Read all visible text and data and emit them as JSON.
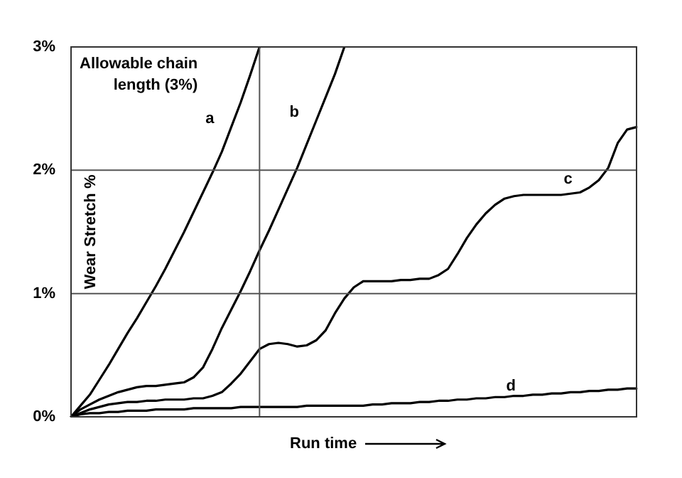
{
  "chart_data": {
    "type": "line",
    "xlabel": "Run time",
    "ylabel": "Wear Stretch %",
    "categories": [
      null,
      null,
      null,
      null,
      null,
      null,
      null,
      null,
      null,
      null,
      null,
      null,
      null,
      null,
      null,
      null,
      null,
      null,
      null,
      null,
      null,
      null,
      null,
      null,
      null,
      null,
      null,
      null,
      null,
      null,
      null,
      null,
      null,
      null,
      null,
      null,
      null,
      null,
      null,
      null,
      null,
      null,
      null,
      null,
      null,
      null,
      null,
      null,
      null,
      null,
      null,
      null,
      null,
      null,
      null,
      null,
      null,
      null,
      null,
      null,
      null
    ],
    "ylim": [
      0,
      3
    ],
    "yticks": [
      {
        "value": 0,
        "label": "0%"
      },
      {
        "value": 1,
        "label": "1%"
      },
      {
        "value": 2,
        "label": "2%"
      },
      {
        "value": 3,
        "label": "3%"
      }
    ],
    "tick_labels": "y",
    "grid": "y",
    "legend": false,
    "marker": "none",
    "line_style": "solid",
    "annotations": [
      "Allowable chain length (3%)"
    ],
    "series": [
      {
        "name": "a",
        "color": "#000000",
        "values": [
          0,
          0.09,
          0.18,
          0.3,
          0.42,
          0.55,
          0.68,
          0.8,
          0.93,
          1.06,
          1.2,
          1.35,
          1.5,
          1.66,
          1.82,
          1.98,
          2.15,
          2.35,
          2.55,
          2.77,
          3,
          null,
          null,
          null,
          null,
          null,
          null,
          null,
          null,
          null,
          null,
          null,
          null,
          null,
          null,
          null,
          null,
          null,
          null,
          null,
          null,
          null,
          null,
          null,
          null,
          null,
          null,
          null,
          null,
          null,
          null,
          null,
          null,
          null,
          null,
          null,
          null,
          null,
          null,
          null,
          null
        ]
      },
      {
        "name": "b",
        "color": "#000000",
        "values": [
          0,
          0.06,
          0.1,
          0.14,
          0.17,
          0.2,
          0.22,
          0.24,
          0.25,
          0.25,
          0.26,
          0.27,
          0.28,
          0.32,
          0.4,
          0.55,
          0.72,
          0.87,
          1.02,
          1.18,
          1.35,
          1.51,
          1.68,
          1.85,
          2.02,
          2.21,
          2.4,
          2.59,
          2.78,
          3,
          null,
          null,
          null,
          null,
          null,
          null,
          null,
          null,
          null,
          null,
          null,
          null,
          null,
          null,
          null,
          null,
          null,
          null,
          null,
          null,
          null,
          null,
          null,
          null,
          null,
          null,
          null,
          null,
          null,
          null,
          null
        ]
      },
      {
        "name": "c",
        "color": "#000000",
        "values": [
          0,
          0.03,
          0.06,
          0.08,
          0.1,
          0.11,
          0.12,
          0.12,
          0.13,
          0.13,
          0.14,
          0.14,
          0.14,
          0.15,
          0.15,
          0.17,
          0.2,
          0.27,
          0.35,
          0.45,
          0.55,
          0.59,
          0.6,
          0.59,
          0.57,
          0.58,
          0.62,
          0.7,
          0.84,
          0.96,
          1.05,
          1.1,
          1.1,
          1.1,
          1.1,
          1.11,
          1.11,
          1.12,
          1.12,
          1.15,
          1.2,
          1.32,
          1.45,
          1.56,
          1.65,
          1.72,
          1.77,
          1.79,
          1.8,
          1.8,
          1.8,
          1.8,
          1.8,
          1.81,
          1.82,
          1.86,
          1.92,
          2.02,
          2.22,
          2.33,
          2.35
        ]
      },
      {
        "name": "d",
        "color": "#000000",
        "values": [
          0,
          0.02,
          0.03,
          0.03,
          0.04,
          0.04,
          0.05,
          0.05,
          0.05,
          0.06,
          0.06,
          0.06,
          0.06,
          0.07,
          0.07,
          0.07,
          0.07,
          0.07,
          0.08,
          0.08,
          0.08,
          0.08,
          0.08,
          0.08,
          0.08,
          0.09,
          0.09,
          0.09,
          0.09,
          0.09,
          0.09,
          0.09,
          0.1,
          0.1,
          0.11,
          0.11,
          0.11,
          0.12,
          0.12,
          0.13,
          0.13,
          0.14,
          0.14,
          0.15,
          0.15,
          0.16,
          0.16,
          0.17,
          0.17,
          0.18,
          0.18,
          0.19,
          0.19,
          0.2,
          0.2,
          0.21,
          0.21,
          0.22,
          0.22,
          0.23,
          0.23
        ]
      }
    ]
  }
}
